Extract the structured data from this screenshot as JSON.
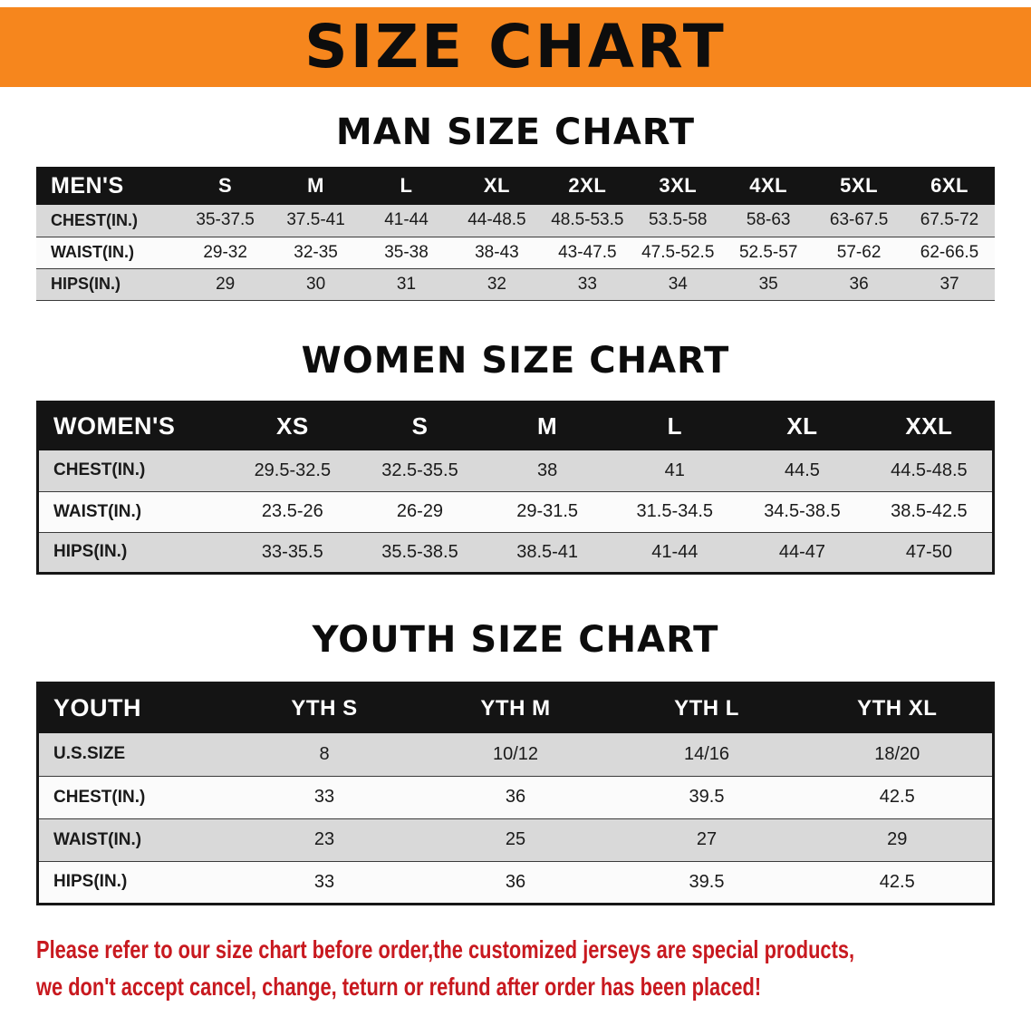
{
  "banner": {
    "title": "SIZE CHART"
  },
  "colors": {
    "banner_bg": "#f6861d",
    "header_bg": "#141414",
    "row_alt_bg": "#d9d9d9",
    "row_bg": "#fbfbfb",
    "disclaimer_red": "#c8191f"
  },
  "sections": [
    {
      "heading": "MAN SIZE CHART",
      "table": {
        "header": [
          "MEN'S",
          "S",
          "M",
          "L",
          "XL",
          "2XL",
          "3XL",
          "4XL",
          "5XL",
          "6XL"
        ],
        "rows": [
          [
            "CHEST(IN.)",
            "35-37.5",
            "37.5-41",
            "41-44",
            "44-48.5",
            "48.5-53.5",
            "53.5-58",
            "58-63",
            "63-67.5",
            "67.5-72"
          ],
          [
            "WAIST(IN.)",
            "29-32",
            "32-35",
            "35-38",
            "38-43",
            "43-47.5",
            "47.5-52.5",
            "52.5-57",
            "57-62",
            "62-66.5"
          ],
          [
            "HIPS(IN.)",
            "29",
            "30",
            "31",
            "32",
            "33",
            "34",
            "35",
            "36",
            "37"
          ]
        ]
      }
    },
    {
      "heading": "WOMEN SIZE CHART",
      "table": {
        "header": [
          "WOMEN'S",
          "XS",
          "S",
          "M",
          "L",
          "XL",
          "XXL"
        ],
        "rows": [
          [
            "CHEST(IN.)",
            "29.5-32.5",
            "32.5-35.5",
            "38",
            "41",
            "44.5",
            "44.5-48.5"
          ],
          [
            "WAIST(IN.)",
            "23.5-26",
            "26-29",
            "29-31.5",
            "31.5-34.5",
            "34.5-38.5",
            "38.5-42.5"
          ],
          [
            "HIPS(IN.)",
            "33-35.5",
            "35.5-38.5",
            "38.5-41",
            "41-44",
            "44-47",
            "47-50"
          ]
        ]
      }
    },
    {
      "heading": "YOUTH SIZE CHART",
      "table": {
        "header": [
          "YOUTH",
          "YTH S",
          "YTH M",
          "YTH L",
          "YTH XL"
        ],
        "rows": [
          [
            "U.S.SIZE",
            "8",
            "10/12",
            "14/16",
            "18/20"
          ],
          [
            "CHEST(IN.)",
            "33",
            "36",
            "39.5",
            "42.5"
          ],
          [
            "WAIST(IN.)",
            "23",
            "25",
            "27",
            "29"
          ],
          [
            "HIPS(IN.)",
            "33",
            "36",
            "39.5",
            "42.5"
          ]
        ]
      }
    }
  ],
  "disclaimer": {
    "line1": "Please refer to our size chart before order,the customized jerseys are special products,",
    "line2": "we don't accept cancel, change, teturn or refund after order has been placed!"
  }
}
